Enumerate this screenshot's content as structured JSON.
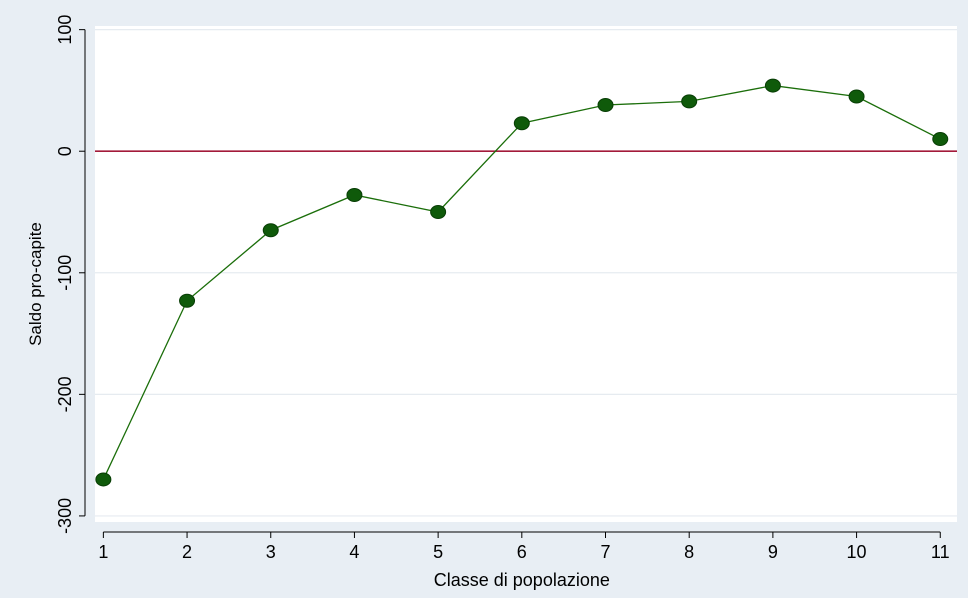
{
  "chart_data": {
    "type": "line",
    "title": "",
    "xlabel": "Classe di popolazione",
    "ylabel": "Saldo pro-capite",
    "x": [
      1,
      2,
      3,
      4,
      5,
      6,
      7,
      8,
      9,
      10,
      11
    ],
    "series": [
      {
        "values": [
          -270,
          -123,
          -65,
          -36,
          -50,
          23,
          38,
          41,
          54,
          45,
          10
        ]
      }
    ],
    "xticks": [
      1,
      2,
      3,
      4,
      5,
      6,
      7,
      8,
      9,
      10,
      11
    ],
    "yticks": [
      -300,
      -200,
      -100,
      0,
      100
    ],
    "xlim": [
      0.9,
      11.2
    ],
    "ylim": [
      -305,
      103
    ],
    "reference_line": {
      "y": 0
    },
    "grid": true,
    "colors": {
      "background": "#e8eef4",
      "plot_area": "#ffffff",
      "grid": "#e6ebf0",
      "line": "#1b6e0a",
      "marker_fill": "#0f5a0a",
      "marker_stroke": "#083d05",
      "reference_line": "#a31a3a",
      "axis": "#000000"
    }
  }
}
